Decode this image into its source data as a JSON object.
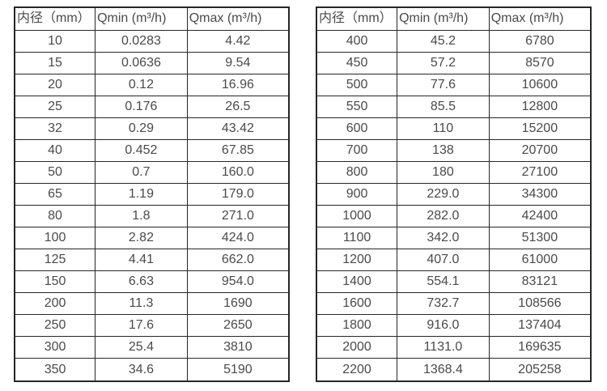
{
  "page": {
    "background": "#ffffff",
    "text_color": "#4a4a4a",
    "border_color": "#262626"
  },
  "tables": [
    {
      "id": "flow-table-small-diameters",
      "headers": [
        "内径（mm）",
        "Qmin (m³/h)",
        "Qmax (m³/h)"
      ],
      "rows": [
        [
          "10",
          "0.0283",
          "4.42"
        ],
        [
          "15",
          "0.0636",
          "9.54"
        ],
        [
          "20",
          "0.12",
          "16.96"
        ],
        [
          "25",
          "0.176",
          "26.5"
        ],
        [
          "32",
          "0.29",
          "43.42"
        ],
        [
          "40",
          "0.452",
          "67.85"
        ],
        [
          "50",
          "0.7",
          "160.0"
        ],
        [
          "65",
          "1.19",
          "179.0"
        ],
        [
          "80",
          "1.8",
          "271.0"
        ],
        [
          "100",
          "2.82",
          "424.0"
        ],
        [
          "125",
          "4.41",
          "662.0"
        ],
        [
          "150",
          "6.63",
          "954.0"
        ],
        [
          "200",
          "11.3",
          "1690"
        ],
        [
          "250",
          "17.6",
          "2650"
        ],
        [
          "300",
          "25.4",
          "3810"
        ],
        [
          "350",
          "34.6",
          "5190"
        ]
      ]
    },
    {
      "id": "flow-table-large-diameters",
      "headers": [
        "内径（mm）",
        "Qmin (m³/h)",
        "Qmax (m³/h)"
      ],
      "rows": [
        [
          "400",
          "45.2",
          "6780"
        ],
        [
          "450",
          "57.2",
          "8570"
        ],
        [
          "500",
          "77.6",
          "10600"
        ],
        [
          "550",
          "85.5",
          "12800"
        ],
        [
          "600",
          "110",
          "15200"
        ],
        [
          "700",
          "138",
          "20700"
        ],
        [
          "800",
          "180",
          "27100"
        ],
        [
          "900",
          "229.0",
          "34300"
        ],
        [
          "1000",
          "282.0",
          "42400"
        ],
        [
          "1100",
          "342.0",
          "51300"
        ],
        [
          "1200",
          "407.0",
          "61000"
        ],
        [
          "1400",
          "554.1",
          "83121"
        ],
        [
          "1600",
          "732.7",
          "108566"
        ],
        [
          "1800",
          "916.0",
          "137404"
        ],
        [
          "2000",
          "1131.0",
          "169635"
        ],
        [
          "2200",
          "1368.4",
          "205258"
        ]
      ]
    }
  ]
}
